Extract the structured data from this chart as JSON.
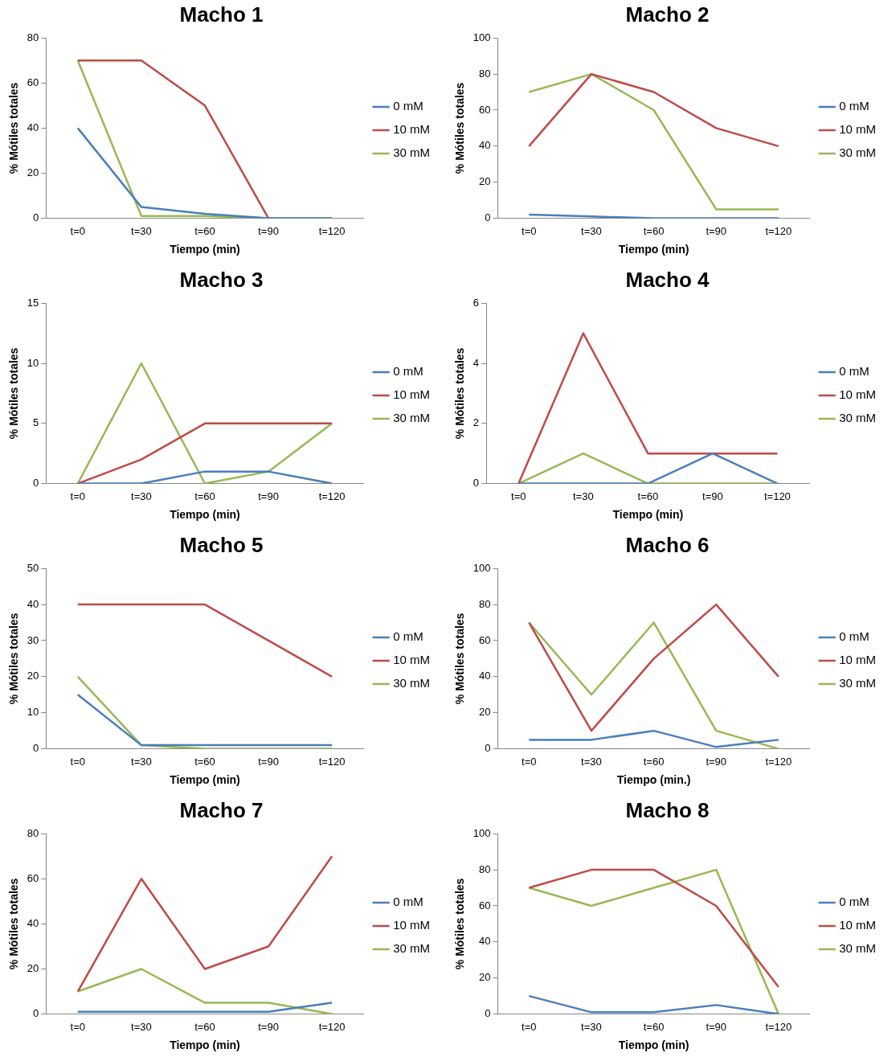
{
  "chart_data": [
    {
      "type": "line",
      "title": "Macho 1",
      "xlabel": "Tiempo (min)",
      "ylabel": "% Mótiles totales",
      "categories": [
        "t=0",
        "t=30",
        "t=60",
        "t=90",
        "t=120"
      ],
      "ylim": [
        0,
        80
      ],
      "yticks": [
        0,
        20,
        40,
        60,
        80
      ],
      "grid": false,
      "legend": "right",
      "marker": "none",
      "series": [
        {
          "name": "0 mM",
          "color": "#4a7ebb",
          "values": [
            40,
            5,
            2,
            0,
            0
          ]
        },
        {
          "name": "10 mM",
          "color": "#be4b48",
          "values": [
            70,
            70,
            50,
            0,
            null
          ]
        },
        {
          "name": "30 mM",
          "color": "#98b954",
          "values": [
            70,
            1,
            1,
            0,
            0
          ]
        }
      ]
    },
    {
      "type": "line",
      "title": "Macho 2",
      "xlabel": "Tiempo (min)",
      "ylabel": "% Mótiles totales",
      "categories": [
        "t=0",
        "t=30",
        "t=60",
        "t=90",
        "t=120"
      ],
      "ylim": [
        0,
        100
      ],
      "yticks": [
        0,
        20,
        40,
        60,
        80,
        100
      ],
      "grid": false,
      "legend": "right",
      "marker": "none",
      "series": [
        {
          "name": "0 mM",
          "color": "#4a7ebb",
          "values": [
            2,
            1,
            0,
            0,
            0
          ]
        },
        {
          "name": "10 mM",
          "color": "#be4b48",
          "values": [
            40,
            80,
            70,
            50,
            40
          ]
        },
        {
          "name": "30 mM",
          "color": "#98b954",
          "values": [
            70,
            80,
            60,
            5,
            5
          ]
        }
      ]
    },
    {
      "type": "line",
      "title": "Macho 3",
      "xlabel": "Tiempo (min)",
      "ylabel": "% Mótiles totales",
      "categories": [
        "t=0",
        "t=30",
        "t=60",
        "t=90",
        "t=120"
      ],
      "ylim": [
        0,
        15
      ],
      "yticks": [
        0,
        5,
        10,
        15
      ],
      "grid": false,
      "legend": "right",
      "marker": "none",
      "series": [
        {
          "name": "0 mM",
          "color": "#4a7ebb",
          "values": [
            0,
            0,
            1,
            1,
            0
          ]
        },
        {
          "name": "10 mM",
          "color": "#be4b48",
          "values": [
            0,
            2,
            5,
            5,
            5
          ]
        },
        {
          "name": "30 mM",
          "color": "#98b954",
          "values": [
            0,
            10,
            0,
            1,
            5
          ]
        }
      ]
    },
    {
      "type": "line",
      "title": "Macho 4",
      "xlabel": "Tiempo (min)",
      "ylabel": "% Mótiles totales",
      "categories": [
        "t=0",
        "t=30",
        "t=60",
        "t=90",
        "t=120"
      ],
      "ylim": [
        0,
        6
      ],
      "yticks": [
        0,
        2,
        4,
        6
      ],
      "grid": false,
      "legend": "right",
      "marker": "none",
      "series": [
        {
          "name": "0 mM",
          "color": "#4a7ebb",
          "values": [
            0,
            0,
            0,
            1,
            0
          ]
        },
        {
          "name": "10 mM",
          "color": "#be4b48",
          "values": [
            0,
            5,
            1,
            1,
            1
          ]
        },
        {
          "name": "30 mM",
          "color": "#98b954",
          "values": [
            0,
            1,
            0,
            0,
            0
          ]
        }
      ]
    },
    {
      "type": "line",
      "title": "Macho 5",
      "xlabel": "Tiempo (min)",
      "ylabel": "% Mótiles totales",
      "categories": [
        "t=0",
        "t=30",
        "t=60",
        "t=90",
        "t=120"
      ],
      "ylim": [
        0,
        50
      ],
      "yticks": [
        0,
        10,
        20,
        30,
        40,
        50
      ],
      "grid": false,
      "legend": "right",
      "marker": "none",
      "series": [
        {
          "name": "0 mM",
          "color": "#4a7ebb",
          "values": [
            15,
            1,
            1,
            1,
            1
          ]
        },
        {
          "name": "10 mM",
          "color": "#be4b48",
          "values": [
            40,
            40,
            40,
            30,
            20
          ]
        },
        {
          "name": "30 mM",
          "color": "#98b954",
          "values": [
            20,
            1,
            0,
            0,
            0
          ]
        }
      ]
    },
    {
      "type": "line",
      "title": "Macho 6",
      "xlabel": "Tiempo (min.)",
      "ylabel": "% Mótiles totales",
      "categories": [
        "t=0",
        "t=30",
        "t=60",
        "t=90",
        "t=120"
      ],
      "ylim": [
        0,
        100
      ],
      "yticks": [
        0,
        20,
        40,
        60,
        80,
        100
      ],
      "grid": false,
      "legend": "right",
      "marker": "none",
      "series": [
        {
          "name": "0 mM",
          "color": "#4a7ebb",
          "values": [
            5,
            5,
            10,
            1,
            5
          ]
        },
        {
          "name": "10 mM",
          "color": "#be4b48",
          "values": [
            70,
            10,
            50,
            80,
            40
          ]
        },
        {
          "name": "30 mM",
          "color": "#98b954",
          "values": [
            70,
            30,
            70,
            10,
            0
          ]
        }
      ]
    },
    {
      "type": "line",
      "title": "Macho 7",
      "xlabel": "Tiempo (min)",
      "ylabel": "% Mótiles totales",
      "categories": [
        "t=0",
        "t=30",
        "t=60",
        "t=90",
        "t=120"
      ],
      "ylim": [
        0,
        80
      ],
      "yticks": [
        0,
        20,
        40,
        60,
        80
      ],
      "grid": false,
      "legend": "right",
      "marker": "none",
      "series": [
        {
          "name": "0 mM",
          "color": "#4a7ebb",
          "values": [
            1,
            1,
            1,
            1,
            5
          ]
        },
        {
          "name": "10 mM",
          "color": "#be4b48",
          "values": [
            10,
            60,
            20,
            30,
            70
          ]
        },
        {
          "name": "30 mM",
          "color": "#98b954",
          "values": [
            10,
            20,
            5,
            5,
            0
          ]
        }
      ]
    },
    {
      "type": "line",
      "title": "Macho 8",
      "xlabel": "Tiempo (min)",
      "ylabel": "% Mótiles totales",
      "categories": [
        "t=0",
        "t=30",
        "t=60",
        "t=90",
        "t=120"
      ],
      "ylim": [
        0,
        100
      ],
      "yticks": [
        0,
        20,
        40,
        60,
        80,
        100
      ],
      "grid": false,
      "legend": "right",
      "marker": "none",
      "series": [
        {
          "name": "0 mM",
          "color": "#4a7ebb",
          "values": [
            10,
            1,
            1,
            5,
            0
          ]
        },
        {
          "name": "10 mM",
          "color": "#be4b48",
          "values": [
            70,
            80,
            80,
            60,
            15
          ]
        },
        {
          "name": "30 mM",
          "color": "#98b954",
          "values": [
            70,
            60,
            70,
            80,
            0
          ]
        }
      ]
    }
  ]
}
